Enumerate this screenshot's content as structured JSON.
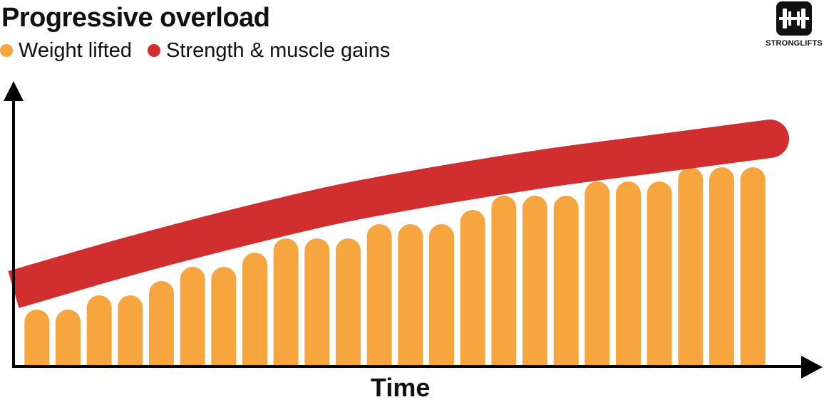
{
  "title": "Progressive overload",
  "legend": [
    {
      "label": "Weight lifted",
      "color": "#F6A53F"
    },
    {
      "label": "Strength & muscle gains",
      "color": "#D12F2F"
    }
  ],
  "logo": {
    "text": "STRONGLIFTS",
    "icon": "barbell-icon"
  },
  "xlabel": "Time",
  "chart_data": {
    "type": "bar",
    "xlabel": "Time",
    "ylabel": "",
    "grid": false,
    "legend_position": "top-left",
    "ylim": [
      0,
      100
    ],
    "series": [
      {
        "name": "Weight lifted",
        "color": "#F6A53F",
        "type": "bar",
        "values": [
          20,
          20,
          25,
          25,
          30,
          35,
          35,
          40,
          45,
          45,
          45,
          50,
          50,
          50,
          55,
          60,
          60,
          60,
          65,
          65,
          65,
          70,
          70,
          70
        ]
      },
      {
        "name": "Strength & muscle gains",
        "color": "#D12F2F",
        "type": "line",
        "values": [
          27,
          38,
          48,
          57,
          64,
          70,
          75,
          80
        ]
      }
    ]
  }
}
